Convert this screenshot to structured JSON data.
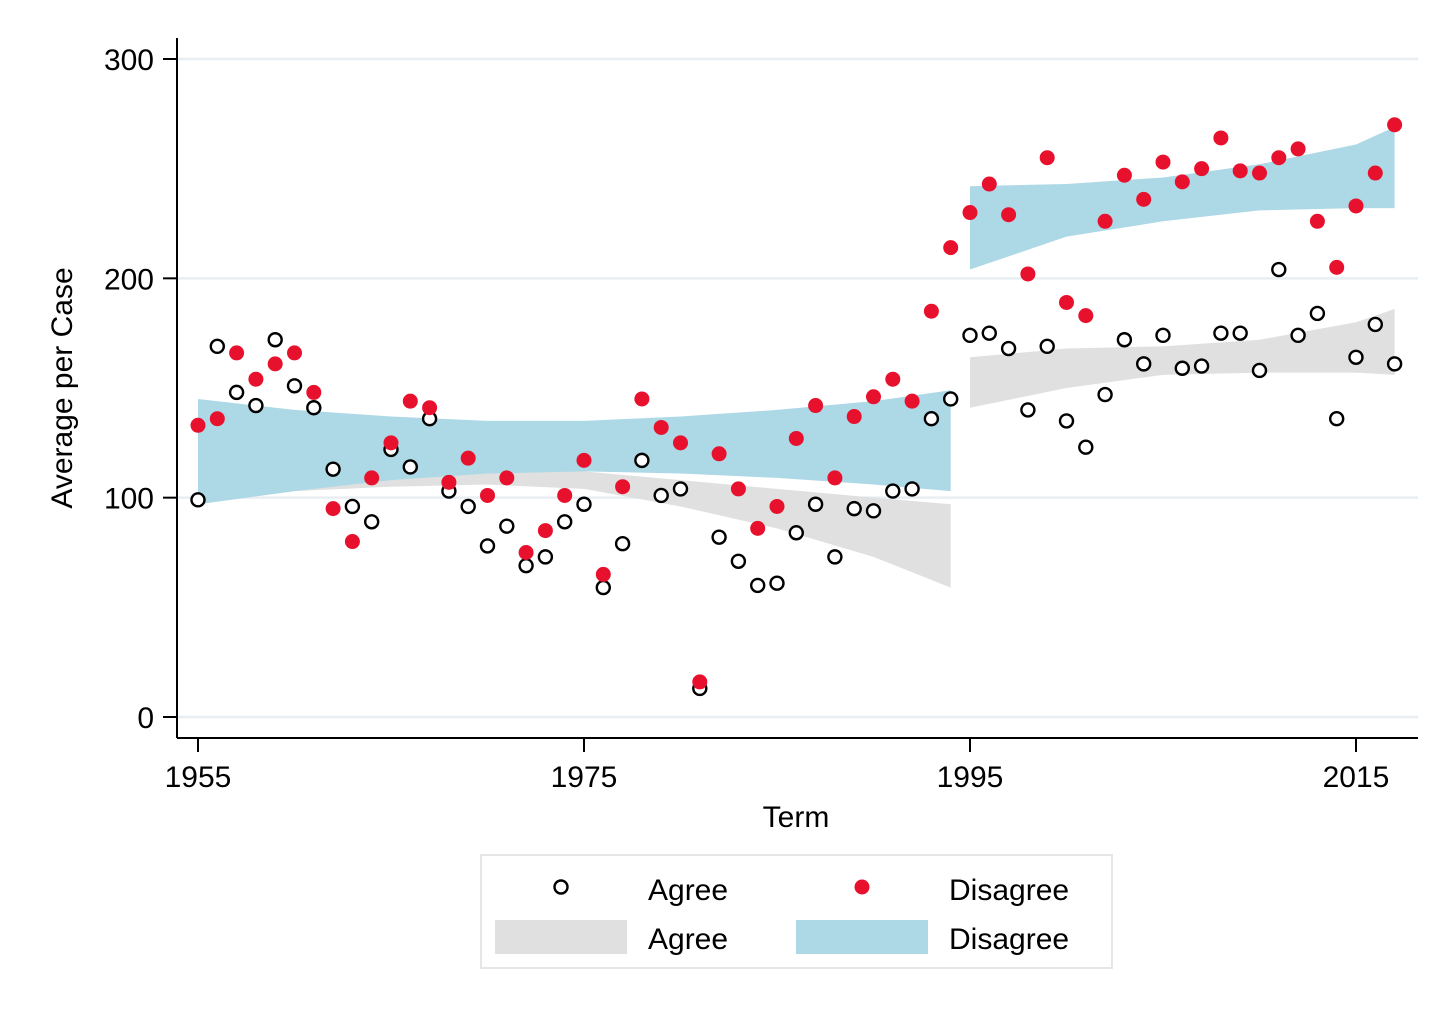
{
  "chart_data": {
    "type": "scatter",
    "xlabel": "Term",
    "ylabel": "Average per Case",
    "xlim": [
      1954,
      2018
    ],
    "ylim": [
      -10,
      310
    ],
    "xticks": [
      "1955",
      "1975",
      "1995",
      "2015"
    ],
    "yticks": [
      "0",
      "100",
      "200",
      "300"
    ],
    "grid": "horizontal",
    "legend_position": "bottom",
    "legend": {
      "agree_points": "Agree",
      "disagree_points": "Disagree",
      "agree_band": "Agree",
      "disagree_band": "Disagree"
    },
    "colors": {
      "agree_marker_stroke": "#000000",
      "disagree_marker": "#e8112d",
      "agree_band": "#e0e0e0",
      "disagree_band": "#add8e6",
      "grid": "#e8eef2"
    },
    "series": [
      {
        "name": "Agree",
        "style": "hollow-circle",
        "x": [
          1955,
          1956,
          1957,
          1958,
          1959,
          1960,
          1961,
          1962,
          1963,
          1964,
          1965,
          1966,
          1967,
          1968,
          1969,
          1970,
          1971,
          1972,
          1973,
          1974,
          1975,
          1976,
          1977,
          1978,
          1979,
          1980,
          1981,
          1982,
          1983,
          1984,
          1985,
          1986,
          1987,
          1988,
          1989,
          1990,
          1991,
          1992,
          1993,
          1994,
          1995,
          1996,
          1997,
          1998,
          1999,
          2000,
          2001,
          2002,
          2003,
          2004,
          2005,
          2006,
          2007,
          2008,
          2009,
          2010,
          2011,
          2012,
          2013,
          2014,
          2015,
          2016,
          2017
        ],
        "y": [
          99,
          169,
          148,
          142,
          172,
          151,
          141,
          113,
          96,
          89,
          122,
          114,
          136,
          103,
          96,
          78,
          87,
          69,
          73,
          89,
          97,
          59,
          79,
          117,
          101,
          104,
          13,
          82,
          71,
          60,
          61,
          84,
          97,
          73,
          95,
          94,
          103,
          104,
          136,
          145,
          174,
          175,
          168,
          140,
          169,
          135,
          123,
          147,
          172,
          161,
          174,
          159,
          160,
          175,
          175,
          158,
          204,
          174,
          184,
          136,
          164,
          179,
          161
        ]
      },
      {
        "name": "Disagree",
        "style": "filled-circle",
        "x": [
          1955,
          1956,
          1957,
          1958,
          1959,
          1960,
          1961,
          1962,
          1963,
          1964,
          1965,
          1966,
          1967,
          1968,
          1969,
          1970,
          1971,
          1972,
          1973,
          1974,
          1975,
          1976,
          1977,
          1978,
          1979,
          1980,
          1981,
          1982,
          1983,
          1984,
          1985,
          1986,
          1987,
          1988,
          1989,
          1990,
          1991,
          1992,
          1993,
          1994,
          1995,
          1996,
          1997,
          1998,
          1999,
          2000,
          2001,
          2002,
          2003,
          2004,
          2005,
          2006,
          2007,
          2008,
          2009,
          2010,
          2011,
          2012,
          2013,
          2014,
          2015,
          2016,
          2017
        ],
        "y": [
          133,
          136,
          166,
          154,
          161,
          166,
          148,
          95,
          80,
          109,
          125,
          144,
          141,
          107,
          118,
          101,
          109,
          75,
          85,
          101,
          117,
          65,
          105,
          145,
          132,
          125,
          16,
          120,
          104,
          86,
          96,
          127,
          142,
          109,
          137,
          146,
          154,
          144,
          185,
          214,
          230,
          243,
          229,
          202,
          255,
          189,
          183,
          226,
          247,
          236,
          253,
          244,
          250,
          264,
          249,
          248,
          255,
          259,
          226,
          205,
          233,
          248,
          270
        ]
      }
    ],
    "bands": [
      {
        "name": "Agree",
        "segments": [
          {
            "x": [
              1955,
              1960,
              1965,
              1970,
              1975,
              1980,
              1985,
              1990,
              1994
            ],
            "upper": [
              145,
              123,
              115,
              114,
              112,
              108,
              104,
              100,
              97
            ],
            "lower": [
              97,
              103,
              105,
              106,
              104,
              96,
              86,
              73,
              59
            ]
          },
          {
            "x": [
              1995,
              2000,
              2005,
              2010,
              2015,
              2017
            ],
            "upper": [
              164,
              168,
              169,
              172,
              180,
              186
            ],
            "lower": [
              141,
              150,
              156,
              157,
              157,
              156
            ]
          }
        ]
      },
      {
        "name": "Disagree",
        "segments": [
          {
            "x": [
              1955,
              1960,
              1965,
              1970,
              1975,
              1980,
              1985,
              1990,
              1994
            ],
            "upper": [
              145,
              140,
              137,
              135,
              135,
              137,
              140,
              144,
              149
            ],
            "lower": [
              97,
              103,
              108,
              111,
              112,
              111,
              109,
              106,
              103
            ]
          },
          {
            "x": [
              1995,
              2000,
              2005,
              2010,
              2015,
              2017
            ],
            "upper": [
              242,
              243,
              246,
              252,
              261,
              269
            ],
            "lower": [
              204,
              219,
              226,
              231,
              232,
              232
            ]
          }
        ]
      }
    ]
  }
}
